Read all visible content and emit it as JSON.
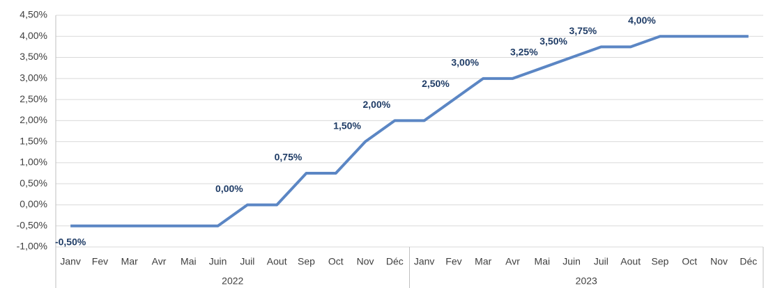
{
  "chart_data": {
    "type": "line",
    "categories": [
      "Janv",
      "Fev",
      "Mar",
      "Avr",
      "Mai",
      "Juin",
      "Juil",
      "Aout",
      "Sep",
      "Oct",
      "Nov",
      "Déc",
      "Janv",
      "Fev",
      "Mar",
      "Avr",
      "Mai",
      "Juin",
      "Juil",
      "Aout",
      "Sep",
      "Oct",
      "Nov",
      "Déc"
    ],
    "category_groups": [
      {
        "label": "2022",
        "count": 12
      },
      {
        "label": "2023",
        "count": 12
      }
    ],
    "series": [
      {
        "color": "#5b86c4",
        "values": [
          -0.5,
          -0.5,
          -0.5,
          -0.5,
          -0.5,
          -0.5,
          0,
          0,
          0.75,
          0.75,
          1.5,
          2,
          2,
          2.5,
          3,
          3,
          3.25,
          3.5,
          3.75,
          3.75,
          4,
          4,
          4,
          4
        ],
        "value_labels": [
          "-0,50%",
          null,
          null,
          null,
          null,
          null,
          "0,00%",
          null,
          "0,75%",
          null,
          "1,50%",
          "2,00%",
          null,
          "2,50%",
          "3,00%",
          null,
          "3,25%",
          "3,50%",
          "3,75%",
          null,
          "4,00%",
          null,
          null,
          null
        ]
      }
    ],
    "ylim": [
      -1,
      4.5
    ],
    "yticks": [
      {
        "value": -1,
        "label": "-1,00%"
      },
      {
        "value": -0.5,
        "label": "-0,50%"
      },
      {
        "value": 0,
        "label": "0,00%"
      },
      {
        "value": 0.5,
        "label": "0,50%"
      },
      {
        "value": 1,
        "label": "1,00%"
      },
      {
        "value": 1.5,
        "label": "1,50%"
      },
      {
        "value": 2,
        "label": "2,00%"
      },
      {
        "value": 2.5,
        "label": "2,50%"
      },
      {
        "value": 3,
        "label": "3,00%"
      },
      {
        "value": 3.5,
        "label": "3,50%"
      },
      {
        "value": 4,
        "label": "4,00%"
      },
      {
        "value": 4.5,
        "label": "4,50%"
      }
    ],
    "grid": true
  }
}
